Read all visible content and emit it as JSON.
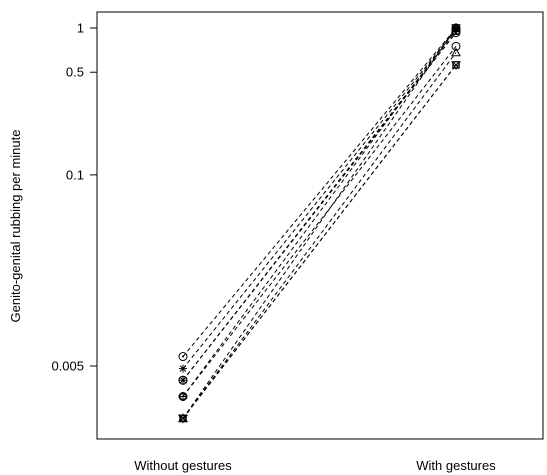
{
  "chart_data": {
    "type": "line",
    "title": "",
    "xlabel": "",
    "ylabel": "Genito-genital rubbing per minute",
    "y_scale": "log",
    "grid": false,
    "categories": [
      "Without gestures",
      "With gestures"
    ],
    "yticks": [
      {
        "value": 1,
        "label": "1"
      },
      {
        "value": 0.5,
        "label": "0.5"
      },
      {
        "value": 0.1,
        "label": "0.1"
      },
      {
        "value": 0.005,
        "label": "0.005"
      }
    ],
    "ylim": [
      0.0018,
      2.0
    ],
    "series": [
      {
        "marker": "circle-dot",
        "values": [
          0.0058,
          1.0
        ]
      },
      {
        "marker": "asterisk",
        "values": [
          0.0048,
          0.98
        ]
      },
      {
        "marker": "circle-plus",
        "values": [
          0.004,
          0.96
        ]
      },
      {
        "marker": "circle-x",
        "values": [
          0.004,
          0.93
        ]
      },
      {
        "marker": "diamond-plus",
        "values": [
          0.0031,
          1.0
        ]
      },
      {
        "marker": "circle",
        "values": [
          0.0031,
          0.75
        ]
      },
      {
        "marker": "triangle-up",
        "values": [
          0.0022,
          0.68
        ]
      },
      {
        "marker": "triangle-down",
        "values": [
          0.0022,
          0.56
        ]
      },
      {
        "marker": "square-x",
        "values": [
          0.0022,
          0.56
        ]
      },
      {
        "marker": "star",
        "values": [
          0.0022,
          1.0
        ]
      }
    ]
  }
}
